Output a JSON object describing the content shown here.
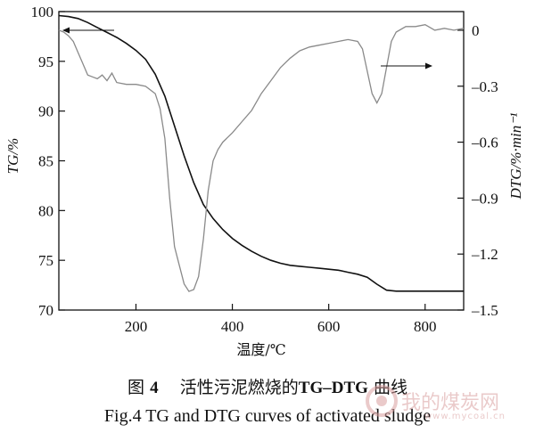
{
  "chart_data": {
    "type": "line",
    "x_axis": {
      "label": "温度/℃",
      "ticks": [
        200,
        400,
        600,
        800
      ],
      "range": [
        40,
        880
      ]
    },
    "y_left": {
      "label": "TG/%",
      "ticks": [
        70,
        75,
        80,
        85,
        90,
        95,
        100
      ],
      "range": [
        70,
        100
      ]
    },
    "y_right": {
      "label": "DTG/%·min⁻¹",
      "ticks": [
        "0",
        "-0.3",
        "-0.6",
        "-0.9",
        "-1.2",
        "-1.5"
      ],
      "range": [
        -1.5,
        0.1
      ]
    },
    "series": [
      {
        "name": "TG",
        "axis": "left",
        "x": [
          40,
          60,
          80,
          100,
          120,
          140,
          160,
          180,
          200,
          220,
          240,
          260,
          280,
          300,
          320,
          340,
          360,
          380,
          400,
          420,
          440,
          460,
          480,
          500,
          520,
          540,
          560,
          580,
          600,
          620,
          640,
          660,
          680,
          700,
          720,
          740,
          760,
          800,
          840,
          880
        ],
        "y": [
          99.6,
          99.5,
          99.3,
          98.9,
          98.4,
          97.9,
          97.4,
          96.8,
          96.1,
          95.2,
          93.7,
          91.5,
          88.5,
          85.5,
          82.8,
          80.6,
          79.2,
          78.1,
          77.2,
          76.5,
          75.9,
          75.4,
          75.0,
          74.7,
          74.5,
          74.4,
          74.3,
          74.2,
          74.1,
          74.0,
          73.8,
          73.6,
          73.3,
          72.6,
          72.0,
          71.9,
          71.9,
          71.9,
          71.9,
          71.9
        ]
      },
      {
        "name": "DTG",
        "axis": "right",
        "x": [
          40,
          50,
          60,
          70,
          80,
          90,
          100,
          110,
          120,
          130,
          140,
          150,
          160,
          180,
          200,
          220,
          240,
          250,
          260,
          270,
          280,
          290,
          300,
          310,
          320,
          330,
          340,
          350,
          360,
          370,
          380,
          400,
          420,
          440,
          460,
          480,
          500,
          520,
          540,
          560,
          580,
          600,
          620,
          640,
          660,
          670,
          680,
          690,
          700,
          710,
          720,
          730,
          740,
          760,
          780,
          800,
          820,
          840,
          860,
          880
        ],
        "y": [
          0.0,
          -0.01,
          -0.03,
          -0.06,
          -0.12,
          -0.18,
          -0.24,
          -0.25,
          -0.26,
          -0.24,
          -0.27,
          -0.23,
          -0.28,
          -0.29,
          -0.29,
          -0.3,
          -0.34,
          -0.42,
          -0.58,
          -0.9,
          -1.16,
          -1.26,
          -1.36,
          -1.4,
          -1.39,
          -1.32,
          -1.12,
          -0.86,
          -0.7,
          -0.64,
          -0.6,
          -0.55,
          -0.49,
          -0.43,
          -0.34,
          -0.27,
          -0.2,
          -0.15,
          -0.11,
          -0.09,
          -0.08,
          -0.07,
          -0.06,
          -0.05,
          -0.06,
          -0.1,
          -0.22,
          -0.34,
          -0.39,
          -0.34,
          -0.2,
          -0.06,
          -0.01,
          0.02,
          0.02,
          0.03,
          0.0,
          0.01,
          0.0,
          0.01
        ]
      }
    ]
  },
  "caption": {
    "cn_prefix": "图",
    "cn_num": "4",
    "cn_text": "活性污泥燃烧的",
    "cn_bold": "TG–DTG",
    "cn_suffix": "曲线",
    "en": "Fig.4 TG and DTG curves of activated sludge"
  },
  "watermark": {
    "text": "我的煤炭网",
    "url": "www.mycoal.cn"
  }
}
